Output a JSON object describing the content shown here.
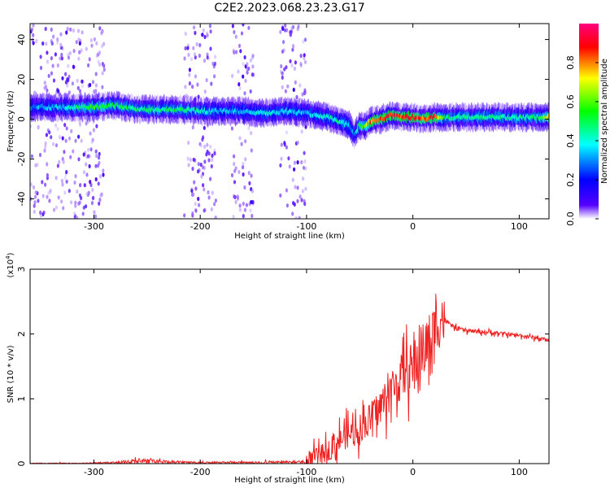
{
  "title": "C2E2.2023.068.23.23.G17",
  "chart_data": [
    {
      "type": "heatmap",
      "title": "C2E2.2023.068.23.23.G17",
      "xlabel": "Height of straight line (km)",
      "ylabel": "Frequency (Hz)",
      "xlim": [
        -360,
        128
      ],
      "ylim": [
        -50,
        48
      ],
      "xticks": [
        -300,
        -200,
        -100,
        0,
        100
      ],
      "yticks": [
        -40,
        -20,
        0,
        20,
        40
      ],
      "colorbar": {
        "label": "Normalized spectral amplitude",
        "range": [
          0.0,
          1.0
        ],
        "ticks": [
          "0.0",
          "0.2",
          "0.4",
          "0.6",
          "0.8"
        ],
        "tick_values": [
          0,
          0.2,
          0.4,
          0.6,
          0.8
        ],
        "colormap": [
          "#ffffff",
          "#5500ff",
          "#0000ff",
          "#00ffff",
          "#00ff00",
          "#ffff00",
          "#ff0000",
          "#ff0080"
        ]
      },
      "ridge": {
        "height_km": [
          -355,
          -330,
          -300,
          -280,
          -260,
          -240,
          -220,
          -200,
          -180,
          -160,
          -140,
          -120,
          -100,
          -90,
          -80,
          -70,
          -60,
          -55,
          -50,
          -45,
          -40,
          -30,
          -20,
          -10,
          0,
          10,
          20,
          30,
          40,
          60,
          80,
          100,
          120,
          128
        ],
        "frequency_hz": [
          6,
          6,
          6,
          7,
          5,
          5,
          5,
          4,
          4,
          4,
          3,
          4,
          3,
          2,
          1,
          -1,
          -3,
          -8,
          -3,
          -4,
          -1,
          0,
          2,
          1,
          1,
          0,
          1,
          1,
          1,
          1,
          1,
          1,
          1,
          1
        ],
        "amplitude": [
          0.3,
          0.35,
          0.55,
          0.5,
          0.45,
          0.45,
          0.5,
          0.4,
          0.35,
          0.35,
          0.4,
          0.35,
          0.35,
          0.35,
          0.4,
          0.45,
          0.35,
          0.3,
          0.55,
          0.6,
          0.8,
          0.85,
          0.9,
          0.85,
          0.9,
          0.8,
          0.9,
          0.5,
          0.45,
          0.45,
          0.45,
          0.45,
          0.5,
          0.7
        ]
      },
      "background_noise_bands_km": [
        [
          -360,
          -290
        ],
        [
          -215,
          -185
        ],
        [
          -170,
          -150
        ],
        [
          -125,
          -100
        ]
      ]
    },
    {
      "type": "line",
      "xlabel": "Height of straight line (km)",
      "ylabel": "SNR (10 * v/v)",
      "y_multiplier": "(x10^4)",
      "xlim": [
        -360,
        128
      ],
      "ylim": [
        0,
        3
      ],
      "xticks": [
        -300,
        -200,
        -100,
        0,
        100
      ],
      "yticks": [
        0,
        1,
        2,
        3
      ],
      "color": "#ee2222",
      "series": [
        {
          "x": [
            -360,
            -320,
            -280,
            -260,
            -240,
            -220,
            -200,
            -180,
            -150,
            -120,
            -100,
            -90,
            -80,
            -70,
            -60,
            -50,
            -40,
            -30,
            -20,
            -10,
            0,
            10,
            20,
            25,
            30,
            40,
            50,
            60,
            80,
            100,
            120,
            128
          ],
          "y": [
            0.01,
            0.01,
            0.03,
            0.08,
            0.06,
            0.04,
            0.03,
            0.03,
            0.03,
            0.04,
            0.05,
            0.1,
            0.2,
            0.35,
            0.45,
            0.55,
            0.7,
            0.9,
            1.15,
            1.35,
            1.5,
            1.75,
            2.0,
            2.3,
            2.2,
            2.1,
            2.05,
            2.04,
            2.01,
            1.98,
            1.93,
            1.9
          ]
        }
      ]
    }
  ]
}
